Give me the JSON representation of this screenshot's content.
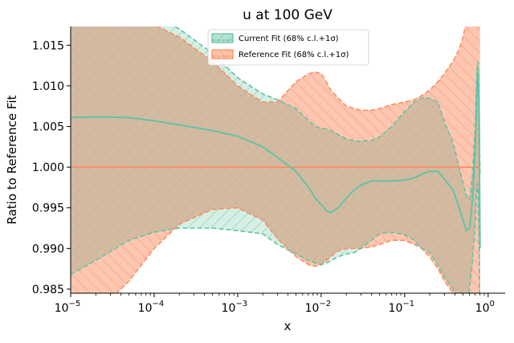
{
  "chart_data": {
    "type": "area",
    "title": "u at 100 GeV",
    "xlabel": "x",
    "ylabel": "Ratio to Reference Fit",
    "xscale": "log",
    "xlim": [
      1e-05,
      1.6
    ],
    "ylim": [
      0.9845,
      1.0173
    ],
    "x_ticks": [
      {
        "value": 1e-05,
        "base": "10",
        "exp": "−5"
      },
      {
        "value": 0.0001,
        "base": "10",
        "exp": "−4"
      },
      {
        "value": 0.001,
        "base": "10",
        "exp": "−3"
      },
      {
        "value": 0.01,
        "base": "10",
        "exp": "−2"
      },
      {
        "value": 0.1,
        "base": "10",
        "exp": "−1"
      },
      {
        "value": 1,
        "base": "10",
        "exp": "0"
      }
    ],
    "y_ticks": [
      {
        "value": 0.985,
        "label": "0.985"
      },
      {
        "value": 0.99,
        "label": "0.990"
      },
      {
        "value": 0.995,
        "label": "0.995"
      },
      {
        "value": 1.0,
        "label": "1.000"
      },
      {
        "value": 1.005,
        "label": "1.005"
      },
      {
        "value": 1.01,
        "label": "1.010"
      },
      {
        "value": 1.015,
        "label": "1.015"
      }
    ],
    "grid": false,
    "legend_position": "top-center",
    "colors": {
      "current": "#66c2a5",
      "current_fill": "#b3e2cd",
      "reference": "#fc8d62",
      "reference_fill": "#fdc3ad",
      "overlap": "#d3b096"
    },
    "series": [
      {
        "name": "Current Fit (68% c.l.+1σ)",
        "key": "current",
        "x": [
          1e-05,
          2.2e-05,
          5e-05,
          0.0001,
          0.0002,
          0.0005,
          0.001,
          0.002,
          0.003,
          0.005,
          0.0071,
          0.0085,
          0.01,
          0.0115,
          0.013,
          0.016,
          0.02,
          0.025,
          0.03,
          0.04,
          0.05,
          0.07,
          0.1,
          0.13,
          0.16,
          0.2,
          0.25,
          0.3,
          0.38,
          0.45,
          0.5,
          0.55,
          0.6,
          0.65,
          0.7,
          0.72,
          0.74,
          0.76,
          0.78,
          0.8
        ],
        "central": [
          1.0061,
          1.0062,
          1.0061,
          1.0057,
          1.0052,
          1.0045,
          1.0038,
          1.0025,
          1.0012,
          0.9995,
          0.9975,
          0.9962,
          0.9954,
          0.9947,
          0.9944,
          0.995,
          0.9962,
          0.9972,
          0.9978,
          0.9983,
          0.9983,
          0.9983,
          0.9984,
          0.9987,
          0.9991,
          0.9995,
          0.9995,
          0.9985,
          0.9972,
          0.995,
          0.9935,
          0.9922,
          0.9925,
          0.996,
          1.002,
          1.006,
          1.011,
          1.012,
          1.006,
          0.99
        ],
        "upper": [
          1.02,
          1.02,
          1.0195,
          1.0185,
          1.017,
          1.014,
          1.011,
          1.009,
          1.0083,
          1.0072,
          1.0057,
          1.005,
          1.0048,
          1.0047,
          1.0045,
          1.004,
          1.0035,
          1.0032,
          1.0032,
          1.0033,
          1.0037,
          1.005,
          1.0068,
          1.008,
          1.0085,
          1.0085,
          1.008,
          1.0055,
          1.003,
          1.0,
          0.998,
          0.9965,
          0.996,
          0.999,
          1.005,
          1.009,
          1.0125,
          1.013,
          1.008,
          0.999
        ],
        "lower": [
          0.9868,
          0.9888,
          0.991,
          0.992,
          0.9925,
          0.9925,
          0.9922,
          0.9918,
          0.9905,
          0.9893,
          0.9885,
          0.9882,
          0.988,
          0.9882,
          0.9885,
          0.989,
          0.9893,
          0.9895,
          0.99,
          0.991,
          0.9918,
          0.992,
          0.9917,
          0.991,
          0.99,
          0.9895,
          0.988,
          0.9865,
          0.985,
          0.9835,
          0.983,
          0.9835,
          0.985,
          0.9885,
          0.993,
          0.996,
          0.998,
          0.997,
          0.99,
          0.98
        ]
      },
      {
        "name": "Reference Fit (68% c.l.+1σ)",
        "key": "reference",
        "x": [
          1e-05,
          2e-05,
          5e-05,
          0.0001,
          0.0002,
          0.0005,
          0.001,
          0.002,
          0.003,
          0.005,
          0.0071,
          0.0085,
          0.01,
          0.0115,
          0.013,
          0.016,
          0.02,
          0.025,
          0.03,
          0.04,
          0.05,
          0.07,
          0.1,
          0.13,
          0.16,
          0.2,
          0.25,
          0.3,
          0.38,
          0.45,
          0.5,
          0.55,
          0.6,
          0.65,
          0.7,
          0.72,
          0.74,
          0.76,
          0.78,
          0.8
        ],
        "central": [
          1.0,
          1.0,
          1.0,
          1.0,
          1.0,
          1.0,
          1.0,
          1.0,
          1.0,
          1.0,
          1.0,
          1.0,
          1.0,
          1.0,
          1.0,
          1.0,
          1.0,
          1.0,
          1.0,
          1.0,
          1.0,
          1.0,
          1.0,
          1.0,
          1.0,
          1.0,
          1.0,
          1.0,
          1.0,
          1.0,
          1.0,
          1.0,
          1.0,
          1.0,
          1.0,
          1.0,
          1.0,
          1.0,
          1.0,
          1.0
        ],
        "upper": [
          1.018,
          1.018,
          1.018,
          1.0175,
          1.016,
          1.013,
          1.01,
          1.008,
          1.008,
          1.0105,
          1.0115,
          1.0117,
          1.0115,
          1.0105,
          1.0095,
          1.0085,
          1.0075,
          1.0072,
          1.007,
          1.007,
          1.0072,
          1.0077,
          1.008,
          1.0083,
          1.0088,
          1.0095,
          1.0105,
          1.0115,
          1.013,
          1.0145,
          1.016,
          1.018,
          1.019,
          1.02,
          1.02,
          1.02,
          1.02,
          1.02,
          1.02,
          1.02
        ],
        "lower": [
          0.98,
          0.982,
          0.986,
          0.99,
          0.993,
          0.9948,
          0.995,
          0.9935,
          0.9912,
          0.989,
          0.988,
          0.9878,
          0.988,
          0.9885,
          0.989,
          0.9897,
          0.99,
          0.99,
          0.99,
          0.9902,
          0.9905,
          0.991,
          0.991,
          0.9905,
          0.99,
          0.989,
          0.9875,
          0.986,
          0.9845,
          0.983,
          0.982,
          0.981,
          0.98,
          0.98,
          0.98,
          0.98,
          0.98,
          0.98,
          0.98,
          0.98
        ]
      }
    ]
  }
}
